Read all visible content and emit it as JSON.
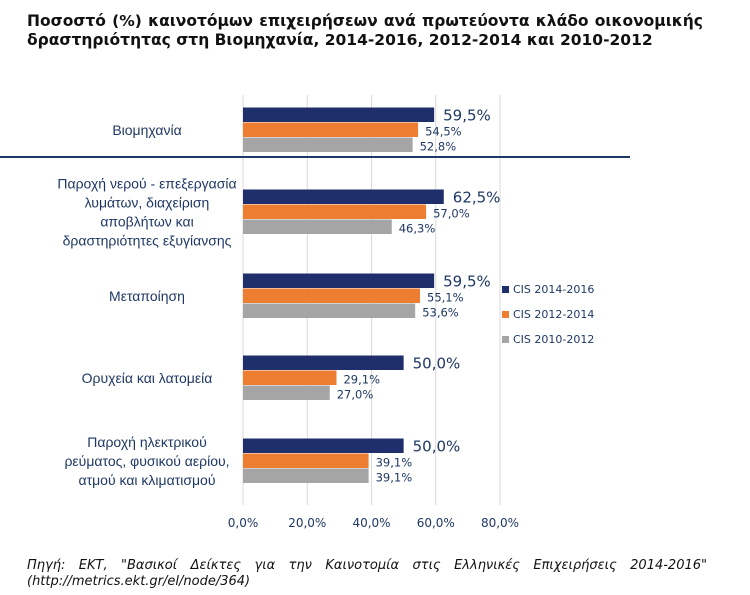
{
  "chart_data": {
    "type": "bar",
    "orientation": "horizontal",
    "title": "Ποσοστό (%) καινοτόμων επιχειρήσεων ανά πρωτεύοντα κλάδο οικονομικής δραστηριότητας στη Βιομηχανία, 2014-2016, 2012-2014 και 2010-2012",
    "categories": [
      [
        "Βιομηχανία"
      ],
      [
        "Παροχή νερού - επεξεργασία",
        "λυμάτων, διαχείριση",
        "αποβλήτων και",
        "δραστηριότητες εξυγίανσης"
      ],
      [
        "Μεταποίηση"
      ],
      [
        "Ορυχεία και λατομεία"
      ],
      [
        "Παροχή ηλεκτρικού",
        "ρεύματος, φυσικού αερίου,",
        "ατμού και κλιματισμού"
      ]
    ],
    "series": [
      {
        "name": "CIS 2014-2016",
        "color": "#1f2f6b",
        "values": [
          59.5,
          62.5,
          59.5,
          50.0,
          50.0
        ],
        "labels": [
          "59,5%",
          "62,5%",
          "59,5%",
          "50,0%",
          "50,0%"
        ]
      },
      {
        "name": "CIS 2012-2014",
        "color": "#ed7d31",
        "values": [
          54.5,
          57.0,
          55.1,
          29.1,
          39.1
        ],
        "labels": [
          "54,5%",
          "57,0%",
          "55,1%",
          "29,1%",
          "39,1%"
        ]
      },
      {
        "name": "CIS 2010-2012",
        "color": "#a5a5a5",
        "values": [
          52.8,
          46.3,
          53.6,
          27.0,
          39.1
        ],
        "labels": [
          "52,8%",
          "46,3%",
          "53,6%",
          "27,0%",
          "39,1%"
        ]
      }
    ],
    "xlim": [
      0,
      80
    ],
    "xticks": [
      0,
      20,
      40,
      60,
      80
    ],
    "xtick_labels": [
      "0,0%",
      "20,0%",
      "40,0%",
      "60,0%",
      "80,0%"
    ],
    "grid": true,
    "legend_position": "right",
    "separator_color": "#1f3864"
  },
  "source": "Πηγή: ΕΚΤ, \"Βασικοί Δείκτες για την Καινοτομία στις Ελληνικές Επιχειρήσεις 2014-2016\" (http://metrics.ekt.gr/el/node/364)"
}
